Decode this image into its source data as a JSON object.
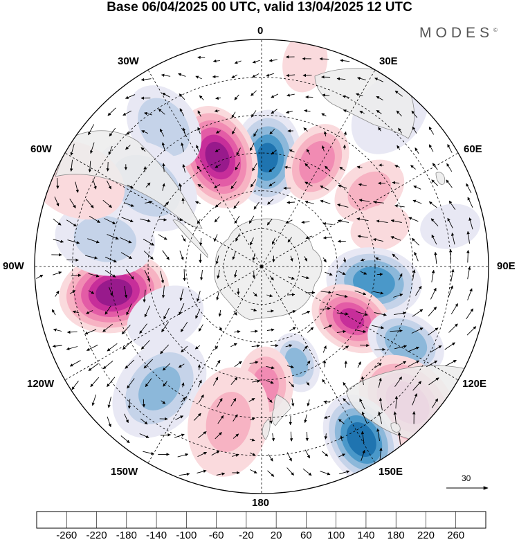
{
  "title": "Base 06/04/2025 00 UTC, valid 13/04/2025 12 UTC",
  "brand": "MODES",
  "brand_mark": "©",
  "longitude_labels": {
    "lon_0": "0",
    "lon_30e": "30E",
    "lon_60e": "60E",
    "lon_90e": "90E",
    "lon_120e": "120E",
    "lon_150e": "150E",
    "lon_180": "180",
    "lon_150w": "150W",
    "lon_120w": "120W",
    "lon_90w": "90W",
    "lon_60w": "60W",
    "lon_30w": "30W"
  },
  "vector_scale_label": "30",
  "colorbar": {
    "colors": [
      "#0c3150",
      "#0d5280",
      "#1f74b0",
      "#4a98c9",
      "#8cb8da",
      "#c5d3e9",
      "#e8e8f4",
      "#ffffff",
      "#fadadd",
      "#f7b3c3",
      "#f18bb3",
      "#e35ca6",
      "#c72e9a",
      "#981a8c",
      "#5c0d73"
    ],
    "tick_labels": [
      "-260",
      "-220",
      "-180",
      "-140",
      "-100",
      "-60",
      "-20",
      "20",
      "60",
      "100",
      "140",
      "180",
      "220",
      "260"
    ]
  },
  "anomaly_features": [
    {
      "lon": 3,
      "colat": 48,
      "value": -185,
      "size": 17
    },
    {
      "lon": -22,
      "colat": 52,
      "value": 235,
      "size": 19
    },
    {
      "lon": 28,
      "colat": 52,
      "value": 135,
      "size": 14
    },
    {
      "lon": -35,
      "colat": 75,
      "value": -95,
      "size": 16
    },
    {
      "lon": -55,
      "colat": 62,
      "value": -90,
      "size": 20
    },
    {
      "lon": 55,
      "colat": 58,
      "value": 70,
      "size": 13
    },
    {
      "lon": 72,
      "colat": 55,
      "value": 45,
      "size": 10
    },
    {
      "lon": -100,
      "colat": 66,
      "value": 250,
      "size": 20
    },
    {
      "lon": -80,
      "colat": 70,
      "value": -75,
      "size": 18
    },
    {
      "lon": 98,
      "colat": 50,
      "value": -170,
      "size": 17
    },
    {
      "lon": 120,
      "colat": 46,
      "value": 180,
      "size": 15
    },
    {
      "lon": 118,
      "colat": 72,
      "value": -135,
      "size": 14
    },
    {
      "lon": 133,
      "colat": 88,
      "value": 175,
      "size": 20
    },
    {
      "lon": 150,
      "colat": 88,
      "value": -210,
      "size": 17
    },
    {
      "lon": -140,
      "colat": 70,
      "value": -110,
      "size": 20
    },
    {
      "lon": 160,
      "colat": 45,
      "value": -110,
      "size": 10
    },
    {
      "lon": 178,
      "colat": 52,
      "value": 110,
      "size": 13
    },
    {
      "lon": -168,
      "colat": 70,
      "value": 60,
      "size": 20
    },
    {
      "lon": -118,
      "colat": 48,
      "value": -40,
      "size": 14
    },
    {
      "lon": 78,
      "colat": 85,
      "value": -45,
      "size": 10
    },
    {
      "lon": 40,
      "colat": 88,
      "value": -30,
      "size": 16
    },
    {
      "lon": -65,
      "colat": 90,
      "value": 40,
      "size": 18
    },
    {
      "lon": 12,
      "colat": 92,
      "value": 30,
      "size": 10
    }
  ]
}
